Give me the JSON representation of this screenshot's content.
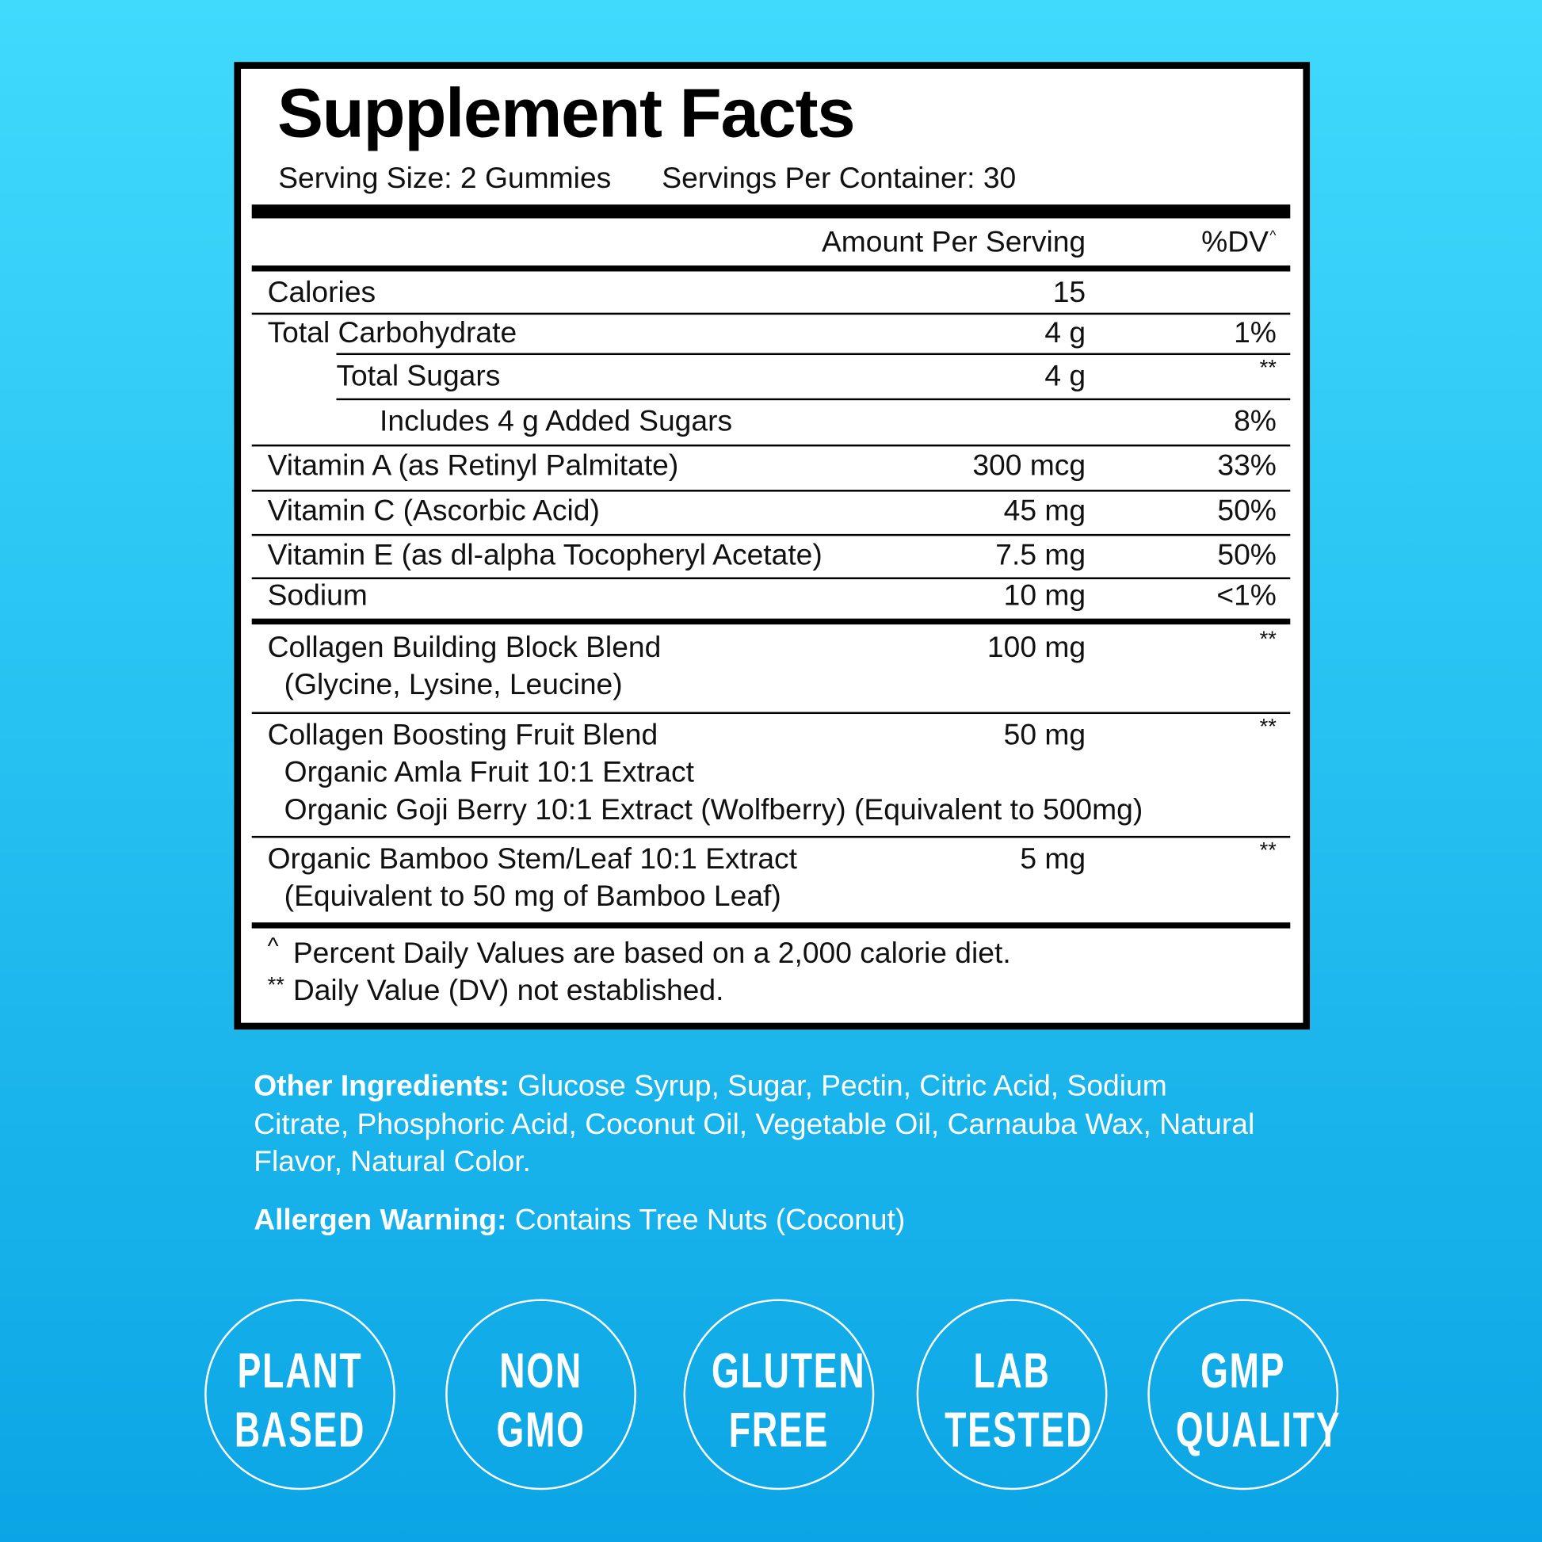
{
  "header": {
    "title": "Supplement Facts",
    "serving_size": "Serving Size: 2 Gummies",
    "servings_per_container": "Servings Per Container: 30"
  },
  "columns": {
    "amount": "Amount Per Serving",
    "dv": "%DV",
    "dv_mark": "^"
  },
  "rows": [
    {
      "name": "Calories",
      "amount": "15"
    },
    {
      "name": "Total Carbohydrate",
      "amount": "4 g",
      "dv": "1%"
    },
    {
      "name": "Total Sugars",
      "amount": "4 g",
      "dv": "**"
    },
    {
      "name": "Includes 4 g Added Sugars",
      "dv": "8%"
    },
    {
      "name": "Vitamin A (as Retinyl Palmitate)",
      "amount": "300 mcg",
      "dv": "33%"
    },
    {
      "name": "Vitamin C (Ascorbic Acid)",
      "amount": "45 mg",
      "dv": "50%"
    },
    {
      "name": "Vitamin E (as dl-alpha Tocopheryl Acetate)",
      "amount": "7.5 mg",
      "dv": "50%"
    },
    {
      "name": "Sodium",
      "amount": "10 mg",
      "dv": "<1%"
    },
    {
      "name": "Collagen Building Block Blend",
      "details": [
        "(Glycine, Lysine, Leucine)"
      ],
      "amount": "100 mg",
      "dv": "**"
    },
    {
      "name": "Collagen Boosting Fruit Blend",
      "details": [
        "Organic Amla Fruit 10:1 Extract",
        "Organic Goji Berry 10:1 Extract (Wolfberry) (Equivalent to 500mg)"
      ],
      "amount": "50 mg",
      "dv": "**"
    },
    {
      "name": "Organic Bamboo Stem/Leaf 10:1 Extract",
      "details": [
        "(Equivalent to 50 mg of Bamboo Leaf)"
      ],
      "amount": "5 mg",
      "dv": "**"
    }
  ],
  "footnotes": [
    {
      "mark": "^",
      "text": "Percent Daily Values are based on a 2,000 calorie diet."
    },
    {
      "mark": "**",
      "text": "Daily Value (DV) not established."
    }
  ],
  "other_ingredients": {
    "label": "Other Ingredients:",
    "text": "Glucose Syrup, Sugar, Pectin, Citric Acid, Sodium Citrate, Phosphoric Acid, Coconut Oil, Vegetable Oil, Carnauba Wax, Natural Flavor, Natural Color."
  },
  "allergen": {
    "label": "Allergen Warning:",
    "text": "Contains Tree Nuts (Coconut)"
  },
  "badges": [
    [
      "PLANT",
      "BASED"
    ],
    [
      "NON",
      "GMO"
    ],
    [
      "GLUTEN",
      "FREE"
    ],
    [
      "LAB",
      "TESTED"
    ],
    [
      "GMP",
      "QUALITY"
    ]
  ]
}
